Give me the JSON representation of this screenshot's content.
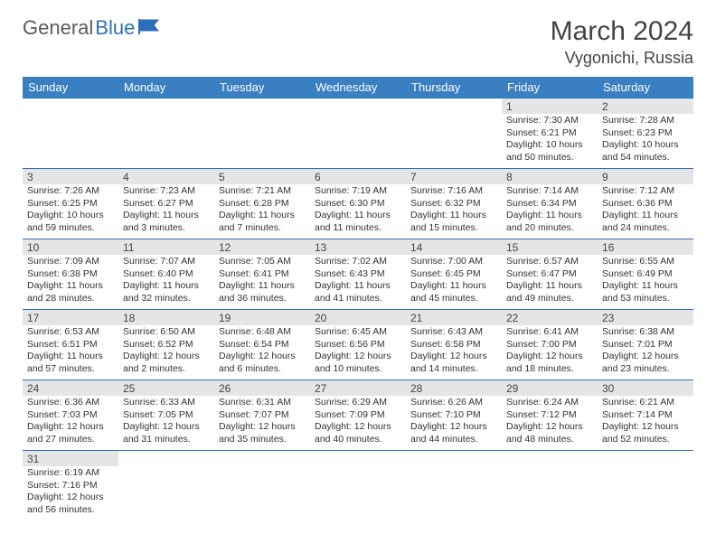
{
  "logo": {
    "part1": "General",
    "part2": "Blue"
  },
  "title": "March 2024",
  "location": "Vygonichi, Russia",
  "day_headers": [
    "Sunday",
    "Monday",
    "Tuesday",
    "Wednesday",
    "Thursday",
    "Friday",
    "Saturday"
  ],
  "colors": {
    "header_bg": "#3a7fc1",
    "header_text": "#ffffff",
    "daynum_bg": "#e5e5e5",
    "border": "#2d6fb6"
  },
  "weeks": [
    [
      null,
      null,
      null,
      null,
      null,
      {
        "n": "1",
        "sr": "7:30 AM",
        "ss": "6:21 PM",
        "dl": "10 hours and 50 minutes."
      },
      {
        "n": "2",
        "sr": "7:28 AM",
        "ss": "6:23 PM",
        "dl": "10 hours and 54 minutes."
      }
    ],
    [
      {
        "n": "3",
        "sr": "7:26 AM",
        "ss": "6:25 PM",
        "dl": "10 hours and 59 minutes."
      },
      {
        "n": "4",
        "sr": "7:23 AM",
        "ss": "6:27 PM",
        "dl": "11 hours and 3 minutes."
      },
      {
        "n": "5",
        "sr": "7:21 AM",
        "ss": "6:28 PM",
        "dl": "11 hours and 7 minutes."
      },
      {
        "n": "6",
        "sr": "7:19 AM",
        "ss": "6:30 PM",
        "dl": "11 hours and 11 minutes."
      },
      {
        "n": "7",
        "sr": "7:16 AM",
        "ss": "6:32 PM",
        "dl": "11 hours and 15 minutes."
      },
      {
        "n": "8",
        "sr": "7:14 AM",
        "ss": "6:34 PM",
        "dl": "11 hours and 20 minutes."
      },
      {
        "n": "9",
        "sr": "7:12 AM",
        "ss": "6:36 PM",
        "dl": "11 hours and 24 minutes."
      }
    ],
    [
      {
        "n": "10",
        "sr": "7:09 AM",
        "ss": "6:38 PM",
        "dl": "11 hours and 28 minutes."
      },
      {
        "n": "11",
        "sr": "7:07 AM",
        "ss": "6:40 PM",
        "dl": "11 hours and 32 minutes."
      },
      {
        "n": "12",
        "sr": "7:05 AM",
        "ss": "6:41 PM",
        "dl": "11 hours and 36 minutes."
      },
      {
        "n": "13",
        "sr": "7:02 AM",
        "ss": "6:43 PM",
        "dl": "11 hours and 41 minutes."
      },
      {
        "n": "14",
        "sr": "7:00 AM",
        "ss": "6:45 PM",
        "dl": "11 hours and 45 minutes."
      },
      {
        "n": "15",
        "sr": "6:57 AM",
        "ss": "6:47 PM",
        "dl": "11 hours and 49 minutes."
      },
      {
        "n": "16",
        "sr": "6:55 AM",
        "ss": "6:49 PM",
        "dl": "11 hours and 53 minutes."
      }
    ],
    [
      {
        "n": "17",
        "sr": "6:53 AM",
        "ss": "6:51 PM",
        "dl": "11 hours and 57 minutes."
      },
      {
        "n": "18",
        "sr": "6:50 AM",
        "ss": "6:52 PM",
        "dl": "12 hours and 2 minutes."
      },
      {
        "n": "19",
        "sr": "6:48 AM",
        "ss": "6:54 PM",
        "dl": "12 hours and 6 minutes."
      },
      {
        "n": "20",
        "sr": "6:45 AM",
        "ss": "6:56 PM",
        "dl": "12 hours and 10 minutes."
      },
      {
        "n": "21",
        "sr": "6:43 AM",
        "ss": "6:58 PM",
        "dl": "12 hours and 14 minutes."
      },
      {
        "n": "22",
        "sr": "6:41 AM",
        "ss": "7:00 PM",
        "dl": "12 hours and 18 minutes."
      },
      {
        "n": "23",
        "sr": "6:38 AM",
        "ss": "7:01 PM",
        "dl": "12 hours and 23 minutes."
      }
    ],
    [
      {
        "n": "24",
        "sr": "6:36 AM",
        "ss": "7:03 PM",
        "dl": "12 hours and 27 minutes."
      },
      {
        "n": "25",
        "sr": "6:33 AM",
        "ss": "7:05 PM",
        "dl": "12 hours and 31 minutes."
      },
      {
        "n": "26",
        "sr": "6:31 AM",
        "ss": "7:07 PM",
        "dl": "12 hours and 35 minutes."
      },
      {
        "n": "27",
        "sr": "6:29 AM",
        "ss": "7:09 PM",
        "dl": "12 hours and 40 minutes."
      },
      {
        "n": "28",
        "sr": "6:26 AM",
        "ss": "7:10 PM",
        "dl": "12 hours and 44 minutes."
      },
      {
        "n": "29",
        "sr": "6:24 AM",
        "ss": "7:12 PM",
        "dl": "12 hours and 48 minutes."
      },
      {
        "n": "30",
        "sr": "6:21 AM",
        "ss": "7:14 PM",
        "dl": "12 hours and 52 minutes."
      }
    ],
    [
      {
        "n": "31",
        "sr": "6:19 AM",
        "ss": "7:16 PM",
        "dl": "12 hours and 56 minutes."
      },
      null,
      null,
      null,
      null,
      null,
      null
    ]
  ]
}
